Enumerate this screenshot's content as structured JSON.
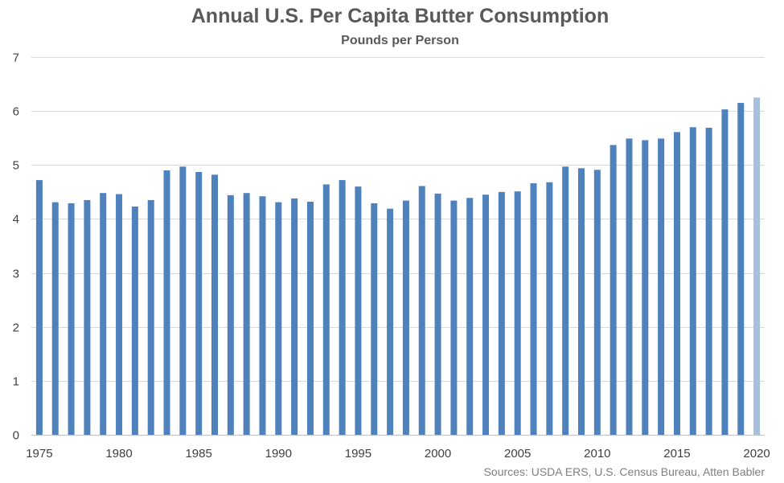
{
  "title": "Annual U.S. Per Capita Butter Consumption",
  "subtitle": "Pounds per Person",
  "source": "Sources: USDA ERS, U.S. Census Bureau, Atten Babler",
  "colors": {
    "bar": "#4f81bd",
    "bar_highlight": "#a5bfdc",
    "gridline": "#d9d9d9",
    "axis_text": "#404040",
    "title": "#595959"
  },
  "chart_data": {
    "type": "bar",
    "title": "Annual U.S. Per Capita Butter Consumption",
    "subtitle": "Pounds per Person",
    "xlabel": "",
    "ylabel": "",
    "ylim": [
      0,
      7
    ],
    "y_ticks": [
      0,
      1,
      2,
      3,
      4,
      5,
      6,
      7
    ],
    "x_tick_labels": [
      "1975",
      "1980",
      "1985",
      "1990",
      "1995",
      "2000",
      "2005",
      "2010",
      "2015",
      "2020"
    ],
    "grid": true,
    "legend": "none",
    "categories": [
      1975,
      1976,
      1977,
      1978,
      1979,
      1980,
      1981,
      1982,
      1983,
      1984,
      1985,
      1986,
      1987,
      1988,
      1989,
      1990,
      1991,
      1992,
      1993,
      1994,
      1995,
      1996,
      1997,
      1998,
      1999,
      2000,
      2001,
      2002,
      2003,
      2004,
      2005,
      2006,
      2007,
      2008,
      2009,
      2010,
      2011,
      2012,
      2013,
      2014,
      2015,
      2016,
      2017,
      2018,
      2019,
      2020
    ],
    "values": [
      4.72,
      4.31,
      4.29,
      4.35,
      4.48,
      4.46,
      4.23,
      4.35,
      4.9,
      4.97,
      4.87,
      4.82,
      4.44,
      4.48,
      4.42,
      4.31,
      4.38,
      4.32,
      4.64,
      4.72,
      4.6,
      4.29,
      4.19,
      4.34,
      4.61,
      4.47,
      4.34,
      4.39,
      4.45,
      4.5,
      4.51,
      4.66,
      4.68,
      4.97,
      4.94,
      4.91,
      5.37,
      5.49,
      5.46,
      5.49,
      5.61,
      5.7,
      5.69,
      6.03,
      6.15,
      6.25
    ],
    "highlight_index": 45
  }
}
